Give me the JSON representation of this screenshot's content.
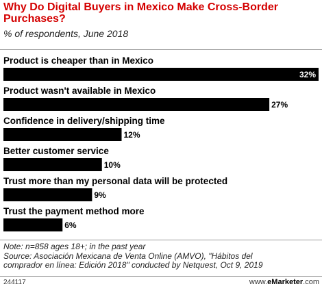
{
  "header": {
    "title": "Why Do Digital Buyers in Mexico Make Cross-Border Purchases?",
    "subtitle": "% of respondents, June 2018"
  },
  "chart_data": {
    "type": "bar",
    "orientation": "horizontal",
    "title": "Why Do Digital Buyers in Mexico Make Cross-Border Purchases?",
    "subtitle": "% of respondents, June 2018",
    "categories": [
      "Product is cheaper than in Mexico",
      "Product wasn't available in Mexico",
      "Confidence in delivery/shipping time",
      "Better customer service",
      "Trust more than my personal data will be protected",
      "Trust the payment method more"
    ],
    "values": [
      32,
      27,
      12,
      10,
      9,
      6
    ],
    "value_labels": [
      "32%",
      "27%",
      "12%",
      "10%",
      "9%",
      "6%"
    ],
    "unit": "%",
    "xlim": [
      0,
      32
    ],
    "bar_color": "#000000"
  },
  "footnote": {
    "lines": [
      "Note: n=858 ages 18+; in the past year",
      "Source: Asociación Mexicana de Venta Online (AMVO), \"Hábitos del",
      "comprador en línea: Edición 2018\" conducted by Netquest, Oct 9, 2019"
    ]
  },
  "footer": {
    "chart_id": "244117",
    "brand_prefix": "www.",
    "brand_bold": "eMarketer",
    "brand_suffix": ".com"
  }
}
